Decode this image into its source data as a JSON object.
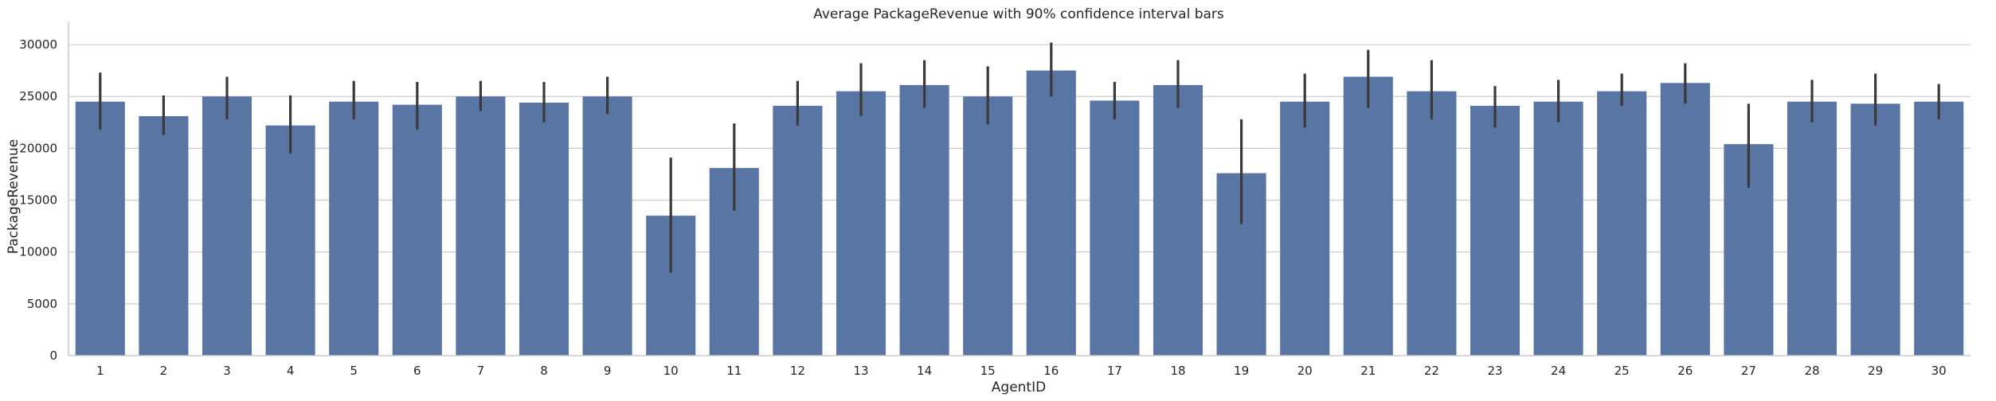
{
  "chart_data": {
    "type": "bar",
    "title": "Average PackageRevenue with 90% confidence interval bars",
    "xlabel": "AgentID",
    "ylabel": "PackageRevenue",
    "ylim": [
      0,
      32000
    ],
    "yticks": [
      0,
      5000,
      10000,
      15000,
      20000,
      25000,
      30000
    ],
    "grid": "horizontal",
    "bar_color": "#5875a4",
    "error_color": "#3a3a3a",
    "categories": [
      "1",
      "2",
      "3",
      "4",
      "5",
      "6",
      "7",
      "8",
      "9",
      "10",
      "11",
      "12",
      "13",
      "14",
      "15",
      "16",
      "17",
      "18",
      "19",
      "20",
      "21",
      "22",
      "23",
      "24",
      "25",
      "26",
      "27",
      "28",
      "29",
      "30"
    ],
    "values": [
      24500,
      23100,
      25000,
      22200,
      24500,
      24200,
      25000,
      24400,
      25000,
      13500,
      18100,
      24100,
      25500,
      26100,
      25000,
      27500,
      24600,
      26100,
      17600,
      24500,
      26900,
      25500,
      24100,
      24500,
      25500,
      26300,
      20400,
      24500,
      24300,
      24500
    ],
    "ci_low": [
      21800,
      21300,
      22800,
      19500,
      22800,
      21800,
      23600,
      22500,
      23300,
      8000,
      14000,
      22200,
      23100,
      23900,
      22300,
      25000,
      22800,
      23900,
      12700,
      22000,
      23900,
      22800,
      22000,
      22500,
      24100,
      24300,
      16200,
      22500,
      22200,
      22800
    ],
    "ci_high": [
      27300,
      25100,
      26900,
      25100,
      26500,
      26400,
      26500,
      26400,
      26900,
      19100,
      22400,
      26500,
      28200,
      28500,
      27900,
      30200,
      26400,
      28500,
      22800,
      27200,
      29500,
      28500,
      26000,
      26600,
      27200,
      28200,
      24300,
      26600,
      27200,
      26200
    ]
  }
}
